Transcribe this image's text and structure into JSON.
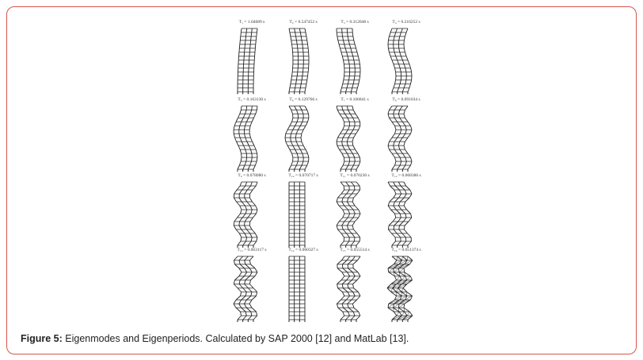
{
  "figure": {
    "modes": [
      {
        "period": "T₁ = 1.04689 s",
        "kind": "shear",
        "n": 1
      },
      {
        "period": "T₂ = 0.547452 s",
        "kind": "shear",
        "n": 2
      },
      {
        "period": "T₃ = 0.312048 s",
        "kind": "shear",
        "n": 3
      },
      {
        "period": "T₄ = 0.216252 s",
        "kind": "shear",
        "n": 4
      },
      {
        "period": "T₅ = 0.163130 s",
        "kind": "shear",
        "n": 5
      },
      {
        "period": "T₆ = 0.129766 s",
        "kind": "shear",
        "n": 6
      },
      {
        "period": "T₇ = 0.106841 s",
        "kind": "shear",
        "n": 7
      },
      {
        "period": "T₈ = 0.091034 s",
        "kind": "shear",
        "n": 8
      },
      {
        "period": "T₉ = 0.078080 s",
        "kind": "shear",
        "n": 9
      },
      {
        "period": "T₁₀ = 0.070717 s",
        "kind": "axial",
        "n": 0
      },
      {
        "period": "T₁₁ = 0.070230 s",
        "kind": "shear",
        "n": 10
      },
      {
        "period": "T₁₂ = 0.068386 s",
        "kind": "shear",
        "n": 11
      },
      {
        "period": "T₁₃ = 0.063117 s",
        "kind": "shear",
        "n": 12
      },
      {
        "period": "T₁₄ = 0.060327 s",
        "kind": "axial2",
        "n": 0
      },
      {
        "period": "T₁₅ = 0.055514 s",
        "kind": "shear",
        "n": 13
      },
      {
        "period": "T₁₆ = 0.051374 s",
        "kind": "cross",
        "n": 14
      }
    ]
  },
  "caption": {
    "label": "Figure 5:",
    "text": " Eigenmodes and Eigenperiods. Calculated by SAP 2000 [12] and MatLab [13]."
  },
  "colors": {
    "border": "#d9534f",
    "ink": "#222222"
  }
}
